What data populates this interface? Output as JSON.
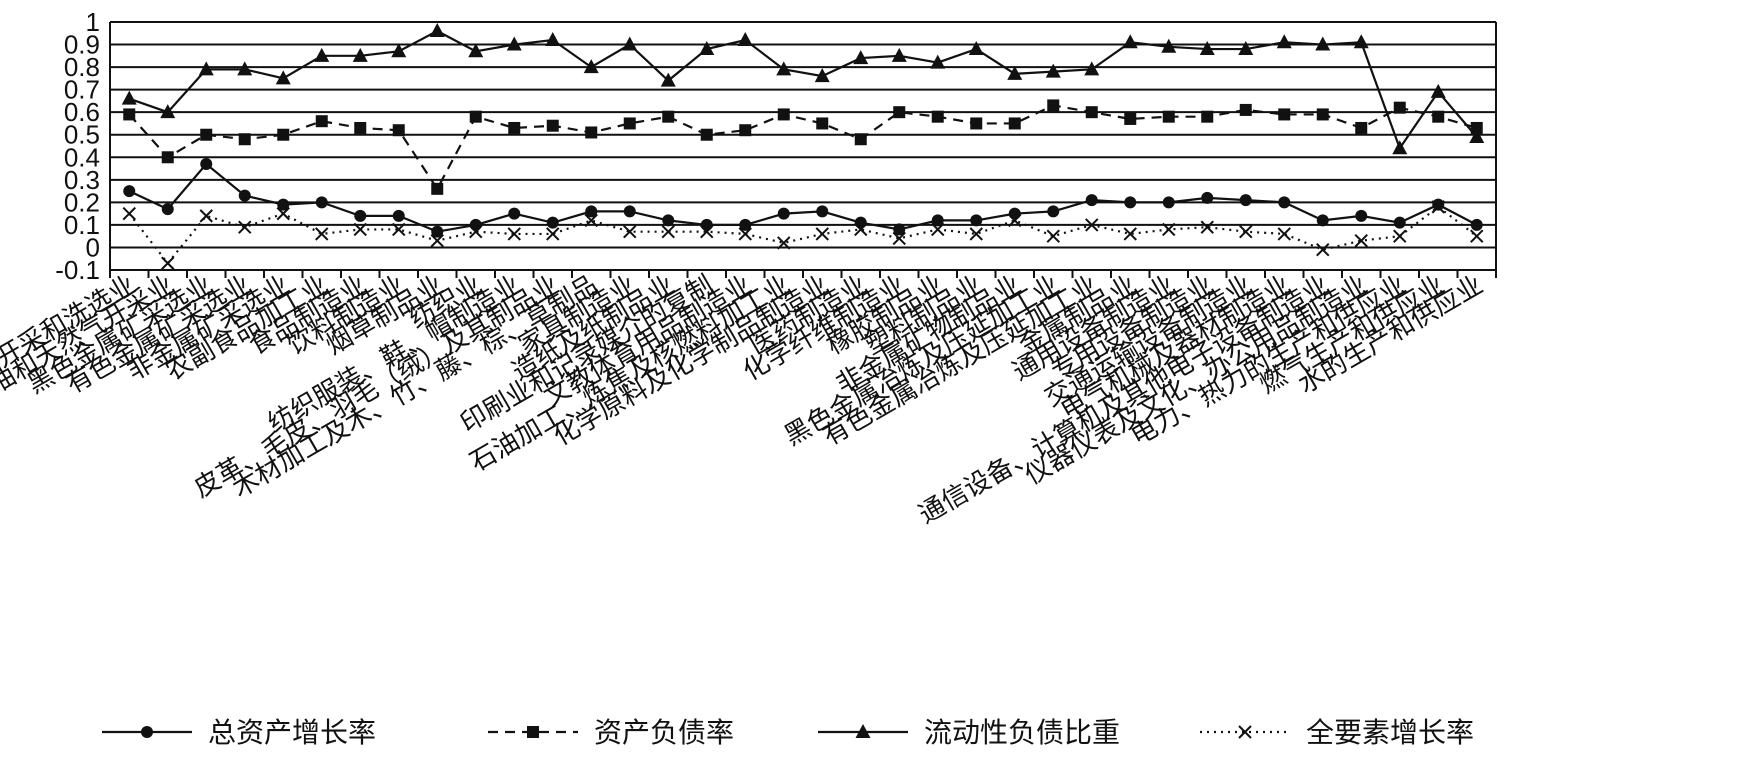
{
  "chart_data": {
    "type": "line",
    "ylim": [
      -0.1,
      1
    ],
    "yticks": [
      "1",
      "0.9",
      "0.8",
      "0.7",
      "0.6",
      "0.5",
      "0.4",
      "0.3",
      "0.2",
      "0.1",
      "0",
      "-0.1"
    ],
    "grid": true,
    "legend_position": "bottom",
    "categories": [
      "煤炭开采和洗选业",
      "石油和天然气开采业",
      "黑色金属矿采选业",
      "有色金属矿采选业",
      "非金属矿采选业",
      "农副食品加工业",
      "食品制造业",
      "饮料制造业",
      "烟草制品业",
      "纺织业",
      "纺织服装、鞋、帽制造业",
      "皮革、毛皮、羽毛（绒）及其制品业",
      "木材加工及木、竹、藤、棕、草制品",
      "家具制造业",
      "造纸及纸制品业",
      "印刷业和记录媒介的复制",
      "文教体育用品制造业",
      "石油加工、炼焦及核燃料加工业",
      "化学原料及化学制品制造业",
      "医药制造业",
      "化学纤维制造业",
      "橡胶制品业",
      "塑料制品业",
      "非金属矿物制品业",
      "黑色金属冶炼及压延加工业",
      "有色金属冶炼及压延加工业",
      "金属制品业",
      "通用设备制造业",
      "专用设备制造业",
      "交通运输设备制造业",
      "电气机械及器材制造业",
      "通信设备、计算机及其他电子设备制造业",
      "仪器仪表及文化、办公用品制造业",
      "电力、热力的生产和供应业",
      "燃气生产和供应业",
      "水的生产和供应业"
    ],
    "series": [
      {
        "name": "总资产增长率",
        "style": "solid",
        "marker": "circle",
        "values": [
          0.25,
          0.17,
          0.37,
          0.23,
          0.19,
          0.2,
          0.14,
          0.14,
          0.07,
          0.1,
          0.15,
          0.11,
          0.16,
          0.16,
          0.12,
          0.1,
          0.1,
          0.15,
          0.16,
          0.11,
          0.08,
          0.12,
          0.12,
          0.15,
          0.16,
          0.21,
          0.2,
          0.2,
          0.22,
          0.21,
          0.2,
          0.12,
          0.14,
          0.11,
          0.19,
          0.1
        ]
      },
      {
        "name": "资产负债率",
        "style": "dashed",
        "marker": "square",
        "values": [
          0.59,
          0.4,
          0.5,
          0.48,
          0.5,
          0.56,
          0.53,
          0.52,
          0.26,
          0.58,
          0.53,
          0.54,
          0.51,
          0.55,
          0.58,
          0.5,
          0.52,
          0.59,
          0.55,
          0.48,
          0.6,
          0.58,
          0.55,
          0.55,
          0.63,
          0.6,
          0.57,
          0.58,
          0.58,
          0.61,
          0.59,
          0.59,
          0.53,
          0.62,
          0.58,
          0.53
        ]
      },
      {
        "name": "流动性负债比重",
        "style": "solid",
        "marker": "triangle",
        "values": [
          0.66,
          0.6,
          0.79,
          0.79,
          0.75,
          0.85,
          0.85,
          0.87,
          0.96,
          0.87,
          0.9,
          0.92,
          0.8,
          0.9,
          0.74,
          0.88,
          0.92,
          0.79,
          0.76,
          0.84,
          0.85,
          0.82,
          0.88,
          0.77,
          0.78,
          0.79,
          0.91,
          0.89,
          0.88,
          0.88,
          0.91,
          0.9,
          0.91,
          0.44,
          0.69,
          0.49
        ]
      },
      {
        "name": "全要素增长率",
        "style": "dotted",
        "marker": "x",
        "values": [
          0.15,
          -0.07,
          0.14,
          0.09,
          0.15,
          0.06,
          0.08,
          0.08,
          0.03,
          0.07,
          0.06,
          0.06,
          0.12,
          0.07,
          0.07,
          0.07,
          0.06,
          0.02,
          0.06,
          0.08,
          0.04,
          0.08,
          0.06,
          0.12,
          0.05,
          0.1,
          0.06,
          0.08,
          0.09,
          0.07,
          0.06,
          -0.01,
          0.03,
          0.05,
          0.18,
          0.05
        ]
      }
    ]
  }
}
